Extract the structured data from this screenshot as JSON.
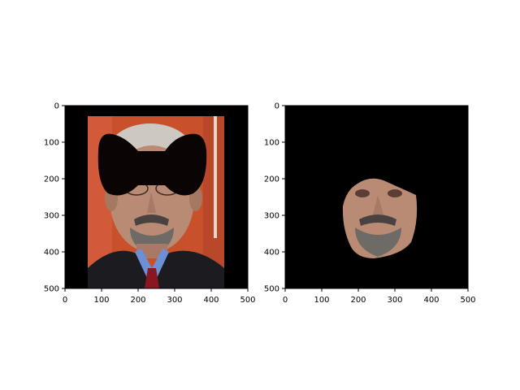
{
  "chart_data": [
    {
      "type": "image",
      "title": "",
      "xlabel": "",
      "ylabel": "",
      "xlim": [
        0,
        500
      ],
      "ylim": [
        500,
        0
      ],
      "x_ticks": [
        0,
        100,
        200,
        300,
        400,
        500
      ],
      "y_ticks": [
        0,
        100,
        200,
        300,
        400,
        500
      ],
      "x_tick_labels": [
        "0",
        "100",
        "200",
        "300",
        "400",
        "500"
      ],
      "y_tick_labels": [
        "0",
        "100",
        "200",
        "300",
        "400",
        "500"
      ],
      "image_description": "portrait photo with face occluded by black bow-tie shaped mask",
      "photo_extent": {
        "x": [
          62,
          435
        ],
        "y": [
          30,
          500
        ]
      },
      "mask_shape": "bow-tie"
    },
    {
      "type": "image",
      "title": "",
      "xlabel": "",
      "ylabel": "",
      "xlim": [
        0,
        500
      ],
      "ylim": [
        500,
        0
      ],
      "x_ticks": [
        0,
        100,
        200,
        300,
        400,
        500
      ],
      "y_ticks": [
        0,
        100,
        200,
        300,
        400,
        500
      ],
      "x_tick_labels": [
        "0",
        "100",
        "200",
        "300",
        "400",
        "500"
      ],
      "y_tick_labels": [
        "0",
        "100",
        "200",
        "300",
        "400",
        "500"
      ],
      "image_description": "segmented lower face region on black background",
      "face_extent": {
        "x": [
          155,
          365
        ],
        "y": [
          198,
          420
        ]
      }
    }
  ],
  "colors": {
    "background": "#ffffff",
    "image_black": "#000000",
    "orange_wall": "#c8502a",
    "skin": "#b98a74",
    "beard": "#6e6a66",
    "suit": "#1c1c20",
    "shirt": "#6d8fd6",
    "tie": "#8a1620"
  }
}
